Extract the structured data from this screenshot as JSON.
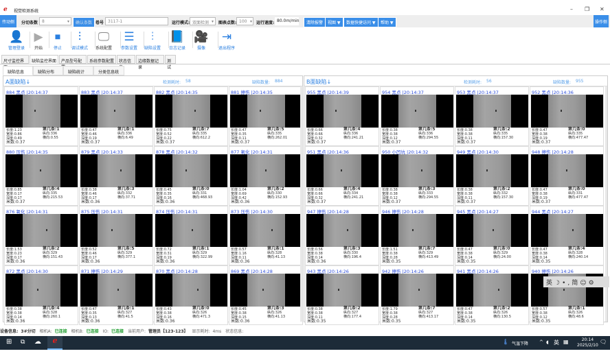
{
  "window": {
    "title": "视觉检测系统",
    "minimize": "–",
    "restore": "❐",
    "close": "✕"
  },
  "bar1": {
    "trigger_btn": "传动侧",
    "split_label": "分切条数",
    "split_value": "8",
    "confirm_btn": "确认条数",
    "roll_label": "卷号",
    "roll_value": "3117-1",
    "mode_label": "运行模式:",
    "mode_value": "双面检测",
    "points_label": "图表点数:",
    "points_value": "100",
    "speed_label": "运行速度:",
    "speed_value": "80.0m/min",
    "clear_btn": "清除报警",
    "view_menu": "视图 ▼",
    "data_menu": "数据快捷访问 ▼",
    "help_menu": "帮助 ▼",
    "operate_btn": "操作侧"
  },
  "toolbar": [
    {
      "label": "管理登录",
      "icon": "user-icon",
      "glyph": "👤",
      "color": "#2a7fe0"
    },
    {
      "label": "开始",
      "icon": "play-icon",
      "glyph": "▶",
      "color": "#aaaaaa"
    },
    {
      "label": "停止",
      "icon": "stop-icon",
      "glyph": "⏹",
      "color": "#2a7fe0"
    },
    {
      "label": "调试模式",
      "icon": "sliders-icon",
      "glyph": "⫶",
      "color": "#2a7fe0"
    },
    {
      "label": "系统配置",
      "icon": "monitor-icon",
      "glyph": "🖵",
      "color": "#888888"
    },
    {
      "label": "参数设置",
      "icon": "settings-icon",
      "glyph": "☰",
      "color": "#2a7fe0"
    },
    {
      "label": "缺陷设置",
      "icon": "equalizer-icon",
      "glyph": "⫶",
      "color": "#7fb2ee"
    },
    {
      "label": "日志记录",
      "icon": "log-icon",
      "glyph": "📘",
      "color": "#2a7fe0"
    },
    {
      "label": "摄像",
      "icon": "camera-icon",
      "glyph": "🎥",
      "color": "#2a7fe0"
    },
    {
      "label": "退出程序",
      "icon": "exit-icon",
      "glyph": "⇥",
      "color": "#2a7fe0"
    }
  ],
  "tabs": [
    "尺寸监控界面",
    "缺陷监控界面",
    "产品型号配置",
    "系统参数配置",
    "状态信息",
    "边缘数据记录",
    "测试"
  ],
  "subtabs": [
    "缺陷信息",
    "缺陷分布",
    "缺陷统计",
    "分类信息统计"
  ],
  "stat_labels": {
    "len": "长度:",
    "wid": "宽度:",
    "dep": "深度:",
    "meter": "米数:",
    "strip": "第几条:",
    "y": "纵向:",
    "x": "横向:"
  },
  "panels": [
    {
      "title": "A面缺陷↓",
      "time_label": "检测耗时:",
      "time_value": "58",
      "count_label": "缺陷数量:",
      "count_value": "884",
      "cells": [
        {
          "h": "884  黑点 |20:14:37",
          "len": "1.23",
          "wid": "0.86",
          "dep": "0.49",
          "meter": "0.37",
          "strip": "1",
          "y": "336",
          "x": "0.55"
        },
        {
          "h": "883  黑点 |20:14:37",
          "len": "0.47",
          "wid": "0.46",
          "dep": "0.19",
          "meter": "0.37",
          "strip": "1",
          "y": "336",
          "x": "6.49"
        },
        {
          "h": "882  黑点 |20:14:35",
          "len": "0.75",
          "wid": "0.52",
          "dep": "0.22",
          "meter": "0.37",
          "strip": "7",
          "y": "335",
          "x": "612.2"
        },
        {
          "h": "881  擦伤 |20:14:35",
          "len": "0.47",
          "wid": "0.35",
          "dep": "0.11",
          "meter": "0.37",
          "strip": "5",
          "y": "335",
          "x": "262.01"
        },
        {
          "h": "880  压伤 |20:14:35",
          "len": "0.85",
          "wid": "0.17",
          "dep": "0.17",
          "meter": "0.37",
          "strip": "4",
          "y": "335",
          "x": "215.53"
        },
        {
          "h": "879  黑点 |20:14:33",
          "len": "0.38",
          "wid": "0.46",
          "dep": "0.17",
          "meter": "0.36",
          "strip": "3",
          "y": "332",
          "x": "37.71"
        },
        {
          "h": "878  黑点 |20:14:32",
          "len": "0.45",
          "wid": "0.35",
          "dep": "0.16",
          "meter": "0.36",
          "strip": "0",
          "y": "331",
          "x": "468.93"
        },
        {
          "h": "877  氧化 |20:14:31",
          "len": "1.04",
          "wid": "0.69",
          "dep": "0.42",
          "meter": "0.36",
          "strip": "2",
          "y": "330",
          "x": "152.93"
        },
        {
          "h": "876  氧化 |20:14:31",
          "len": "1.53",
          "wid": "0.23",
          "dep": "0.17",
          "meter": "0.36",
          "strip": "2",
          "y": "329",
          "x": "151.43"
        },
        {
          "h": "875  压伤 |20:14:31",
          "len": "0.52",
          "wid": "0.46",
          "dep": "0.17",
          "meter": "0.36",
          "strip": "5",
          "y": "329",
          "x": "377.1"
        },
        {
          "h": "874  压伤 |20:14:31",
          "len": "0.72",
          "wid": "0.31",
          "dep": "0.19",
          "meter": "0.36",
          "strip": "1",
          "y": "329",
          "x": "322.99"
        },
        {
          "h": "873  压伤 |20:14:30",
          "len": "0.57",
          "wid": "1.16",
          "dep": "0.11",
          "meter": "0.36",
          "strip": "1",
          "y": "328",
          "x": "41.13"
        },
        {
          "h": "872  黑点 |20:14:30",
          "len": "0.38",
          "wid": "0.38",
          "dep": "0.14",
          "meter": "0.36",
          "strip": "4",
          "y": "328",
          "x": "260.1"
        },
        {
          "h": "871  擦伤 |20:14:29",
          "len": "0.47",
          "wid": "0.35",
          "dep": "0.13",
          "meter": "0.36",
          "strip": "1",
          "y": "327",
          "x": "41.5"
        },
        {
          "h": "870  黑点 |20:14:28",
          "len": "0.43",
          "wid": "0.38",
          "dep": "0.16",
          "meter": "0.36",
          "strip": "0",
          "y": "326",
          "x": "471.3"
        },
        {
          "h": "869  黑点 |20:14:28",
          "len": "0.45",
          "wid": "0.38",
          "dep": "0.15",
          "meter": "0.36",
          "strip": "3",
          "y": "326",
          "x": "41.13"
        }
      ]
    },
    {
      "title": "B面缺陷↓",
      "time_label": "检测耗时:",
      "time_value": "56",
      "count_label": "缺陷数量:",
      "count_value": "955",
      "cells": [
        {
          "h": "955  黑点 |20:14:39",
          "len": "0.66",
          "wid": "0.66",
          "dep": "0.32",
          "meter": "0.37",
          "strip": "4",
          "y": "336",
          "x": "241.21"
        },
        {
          "h": "954  黑点 |20:14:37",
          "len": "0.38",
          "wid": "0.38",
          "dep": "0.12",
          "meter": "0.37",
          "strip": "5",
          "y": "336",
          "x": "294.55"
        },
        {
          "h": "953  黑点 |20:14:37",
          "len": "0.38",
          "wid": "0.38",
          "dep": "0.11",
          "meter": "0.37",
          "strip": "2",
          "y": "335",
          "x": "157.30"
        },
        {
          "h": "952  黑点 |20:14:36",
          "len": "0.47",
          "wid": "0.38",
          "dep": "0.19",
          "meter": "0.37",
          "strip": "0",
          "y": "335",
          "x": "477.47"
        },
        {
          "h": "951  黑点 |20:14:36",
          "len": "0.66",
          "wid": "0.66",
          "dep": "0.32",
          "meter": "0.37",
          "strip": "4",
          "y": "334",
          "x": "241.21"
        },
        {
          "h": "950  小凹坑 |20:14:32",
          "len": "0.38",
          "wid": "0.38",
          "dep": "0.12",
          "meter": "0.37",
          "strip": "3",
          "y": "333",
          "x": "294.55"
        },
        {
          "h": "949  黑点 |20:14:30",
          "len": "0.38",
          "wid": "0.38",
          "dep": "0.11",
          "meter": "0.37",
          "strip": "2",
          "y": "332",
          "x": "157.30"
        },
        {
          "h": "948  擦伤 |20:14:28",
          "len": "0.47",
          "wid": "0.38",
          "dep": "0.19",
          "meter": "0.37",
          "strip": "0",
          "y": "331",
          "x": "477.47"
        },
        {
          "h": "947  擦伤 |20:14:28",
          "len": "0.56",
          "wid": "0.38",
          "dep": "0.14",
          "meter": "0.36",
          "strip": "3",
          "y": "330",
          "x": "196.4"
        },
        {
          "h": "946  擦伤 |20:14:28",
          "len": "1.51",
          "wid": "0.38",
          "dep": "0.28",
          "meter": "0.35",
          "strip": "7",
          "y": "329",
          "x": "413.49"
        },
        {
          "h": "945  黑点 |20:14:27",
          "len": "0.47",
          "wid": "0.38",
          "dep": "0.14",
          "meter": "0.35",
          "strip": "0",
          "y": "329",
          "x": "24.00"
        },
        {
          "h": "944  黑点 |20:14:27",
          "len": "0.47",
          "wid": "0.38",
          "dep": "0.14",
          "meter": "0.35",
          "strip": "4",
          "y": "328",
          "x": "240.14"
        },
        {
          "h": "943  黑点 |20:14:26",
          "len": "0.38",
          "wid": "0.38",
          "dep": "0.11",
          "meter": "0.35",
          "strip": "2",
          "y": "327",
          "x": "177.4"
        },
        {
          "h": "942  擦伤 |20:14:26",
          "len": "1.79",
          "wid": "0.38",
          "dep": "0.28",
          "meter": "0.35",
          "strip": "7",
          "y": "327",
          "x": "413.17"
        },
        {
          "h": "941  黑点 |20:14:26",
          "len": "0.47",
          "wid": "0.38",
          "dep": "0.14",
          "meter": "0.35",
          "strip": "2",
          "y": "326",
          "x": "130.5"
        },
        {
          "h": "940  擦伤 |20:14:26",
          "len": "0.57",
          "wid": "0.38",
          "dep": "0.12",
          "meter": "0.35",
          "strip": "1",
          "y": "326",
          "x": "48.6"
        }
      ]
    }
  ],
  "ime": {
    "lang": "英",
    "moon": "☽",
    "punct": "•,",
    "simp": "简",
    "emoji": "☺",
    "settings": "⚙"
  },
  "status": {
    "device_label": "设备信息:",
    "device_value": "3#分切",
    "camA_label": "相机A:",
    "camA_value": "已连接",
    "camB_label": "相机B:",
    "camB_value": "已连接",
    "io_label": "IO:",
    "io_value": "已连接",
    "user_label": "当前用户:",
    "user_value": "管理员【123-123】",
    "disp_label": "显示耗时:",
    "disp_value": "4ms",
    "state_label": "状态信息:"
  },
  "taskbar": {
    "weather": "气温下降",
    "ime": "英",
    "time": "20:14",
    "date": "2025/2/10"
  },
  "colors": {
    "accent": "#3a8ee8",
    "link": "#2a4bd8",
    "ok": "#1a9a2a",
    "taskbar": "#1d2b38"
  }
}
